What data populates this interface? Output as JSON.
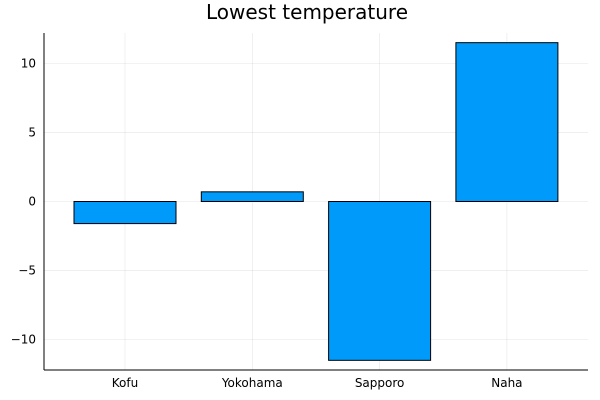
{
  "chart_data": {
    "type": "bar",
    "title": "Lowest temperature",
    "xlabel": "",
    "ylabel": "",
    "categories": [
      "Kofu",
      "Yokohama",
      "Sapporo",
      "Naha"
    ],
    "values": [
      -1.6,
      0.7,
      -11.5,
      11.5
    ],
    "ylim": [
      -12.2,
      12.2
    ],
    "yticks": [
      -10,
      -5,
      0,
      5,
      10
    ],
    "ytick_labels": [
      "−10",
      "−5",
      "0",
      "5",
      "10"
    ],
    "grid": true,
    "legend": "none",
    "bar_color": "#009AFA"
  }
}
